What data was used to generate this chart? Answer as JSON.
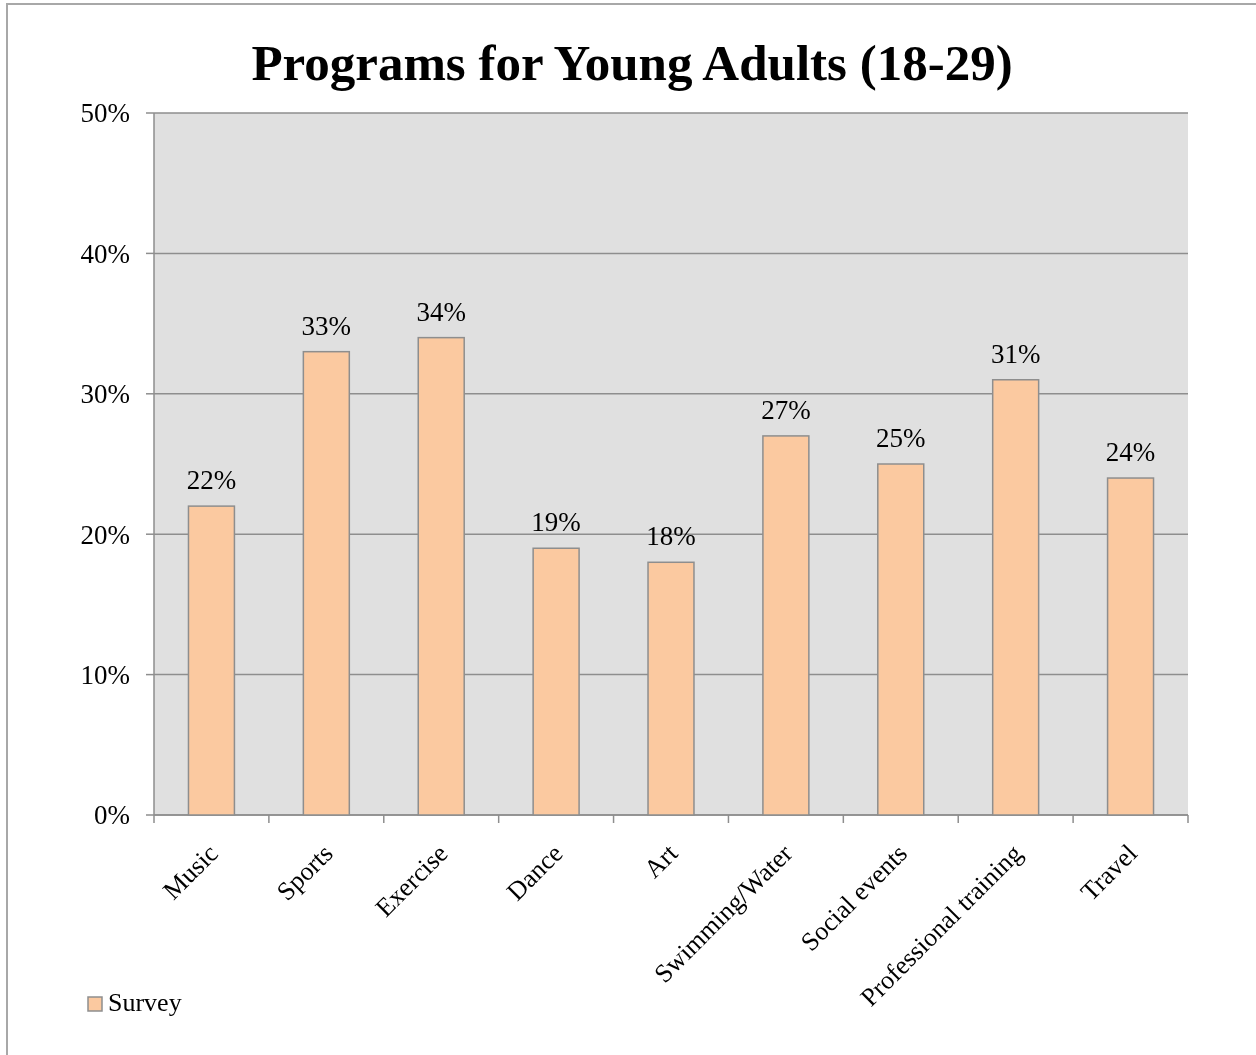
{
  "chart_data": {
    "type": "bar",
    "title": "Programs for Young Adults (18-29)",
    "categories": [
      "Music",
      "Sports",
      "Exercise",
      "Dance",
      "Art",
      "Swimming/Water",
      "Social events",
      "Professional training",
      "Travel"
    ],
    "series": [
      {
        "name": "Survey",
        "color": "#fbc9a0",
        "values": [
          22,
          33,
          34,
          19,
          18,
          27,
          25,
          31,
          24
        ],
        "value_labels": [
          "22%",
          "33%",
          "34%",
          "19%",
          "18%",
          "27%",
          "25%",
          "31%",
          "24%"
        ]
      }
    ],
    "ylim": [
      0,
      50
    ],
    "yticks": [
      {
        "value": 0,
        "label": "0%"
      },
      {
        "value": 10,
        "label": "10%"
      },
      {
        "value": 20,
        "label": "20%"
      },
      {
        "value": 30,
        "label": "30%"
      },
      {
        "value": 40,
        "label": "40%"
      },
      {
        "value": 50,
        "label": "50%"
      }
    ],
    "grid": "y",
    "legend": "bottom left"
  }
}
